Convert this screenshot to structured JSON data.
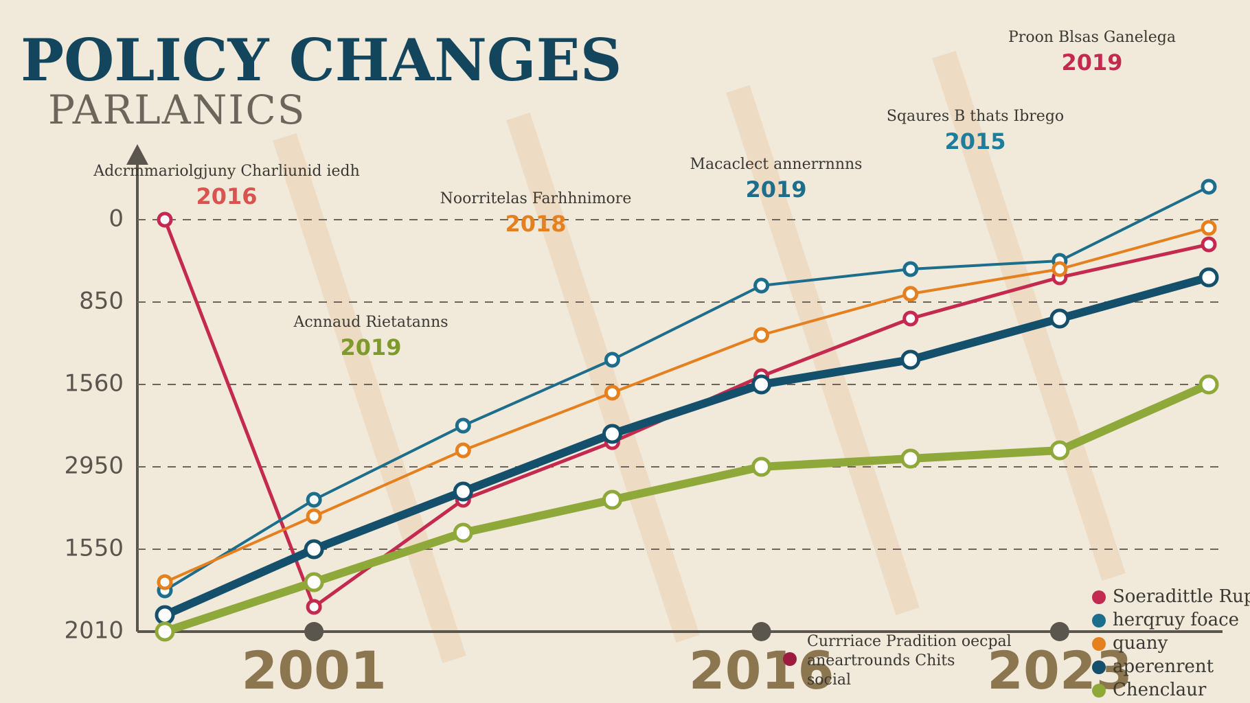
{
  "chart_data": {
    "type": "line",
    "title": "POLICY CHANGES",
    "subtitle": "PARLANICS",
    "categories": [
      null,
      "2001",
      null,
      null,
      "2016",
      null,
      "2023",
      null
    ],
    "ylim": [
      0,
      5.5
    ],
    "yticks": [
      {
        "value": 0,
        "label": "2010"
      },
      {
        "value": 1,
        "label": "1550"
      },
      {
        "value": 2,
        "label": "2950"
      },
      {
        "value": 3,
        "label": "1560"
      },
      {
        "value": 4,
        "label": "850"
      },
      {
        "value": 5,
        "label": "0"
      }
    ],
    "grid": true,
    "series": [
      {
        "name": "Soeradittle Ruppr",
        "color": "#c42a4f",
        "values": [
          5.0,
          0.3,
          1.6,
          2.3,
          3.1,
          3.8,
          4.3,
          4.7
        ]
      },
      {
        "name": "herqruy foace",
        "color": "#1c6e8c",
        "values": [
          0.5,
          1.6,
          2.5,
          3.3,
          4.2,
          4.4,
          4.5,
          5.4
        ]
      },
      {
        "name": "quany",
        "color": "#e5801e",
        "values": [
          0.6,
          1.4,
          2.2,
          2.9,
          3.6,
          4.1,
          4.4,
          4.9
        ]
      },
      {
        "name": "aperenrent",
        "color": "#14506b",
        "values": [
          0.2,
          1.0,
          1.7,
          2.4,
          3.0,
          3.3,
          3.8,
          4.3
        ]
      },
      {
        "name": "Chenclaur",
        "color": "#8fa83a",
        "values": [
          0.0,
          0.6,
          1.2,
          1.6,
          2.0,
          2.1,
          2.2,
          3.0
        ]
      }
    ],
    "annotations": [
      {
        "text": "Adcrmmariolgjuny Charliunid iedh",
        "year": "2016",
        "color": "#d9534f"
      },
      {
        "text": "Noorritelas Farhhnimore",
        "year": "2018",
        "color": "#e5801e"
      },
      {
        "text": "Acnnaud Rietatanns",
        "year": "2019",
        "color": "#7d9a2a"
      },
      {
        "text": "Macaclect annerrnnns",
        "year": "2019",
        "color": "#1c6e8c"
      },
      {
        "text": "Sqaures B thats Ibrego",
        "year": "2015",
        "color": "#1c7e9c"
      },
      {
        "text": "Proon Blsas Ganelega",
        "year": "2019",
        "color": "#c42a4f"
      }
    ],
    "footnote": [
      "Currriace Pradition oecpal",
      "aneartrounds Chits",
      "social"
    ]
  }
}
